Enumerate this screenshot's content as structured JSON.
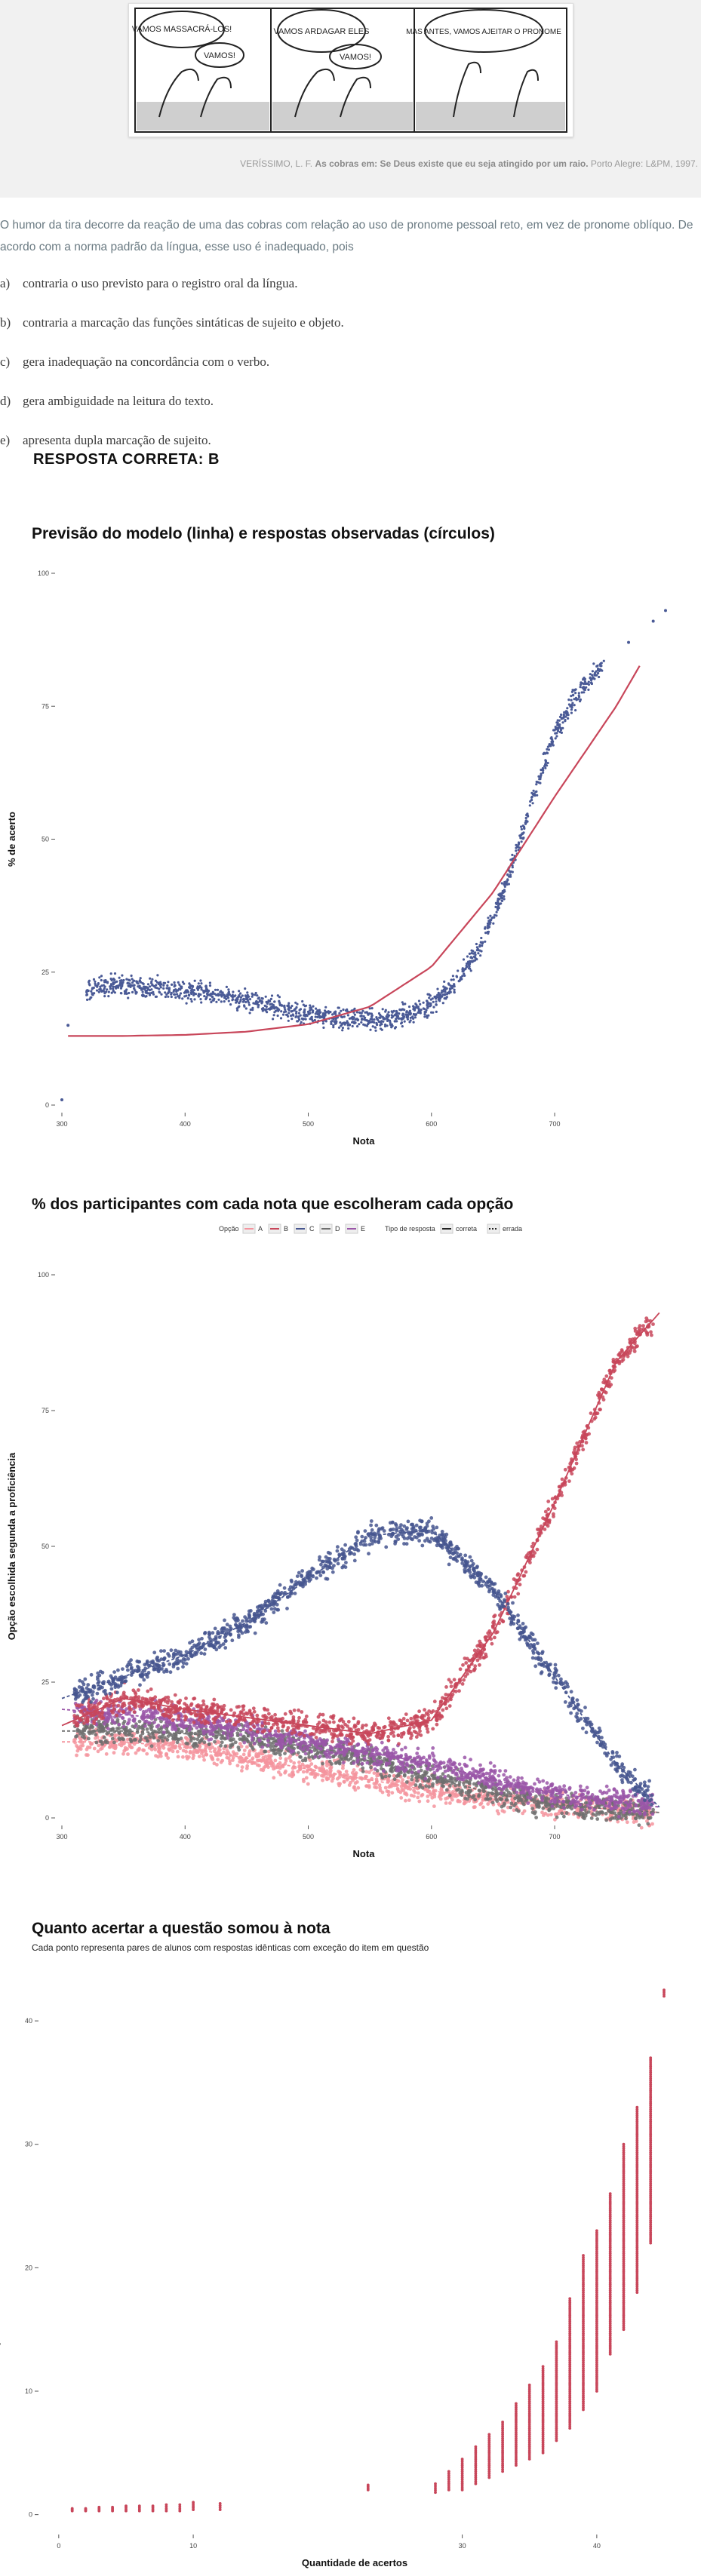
{
  "citation": {
    "author": "VERÍSSIMO, L. F.",
    "title": "As cobras em: Se Deus existe que eu seja atingido por um raio.",
    "publisher": "Porto Alegre: L&PM, 1997."
  },
  "comic": {
    "panels": [
      {
        "balloons": [
          "VAMOS MASSACRÁ-LOS!",
          "VAMOS!"
        ]
      },
      {
        "balloons": [
          "VAMOS ARDAGAR ELES",
          "VAMOS!"
        ]
      },
      {
        "balloons": [
          "MAS ANTES, VAMOS AJEITAR O PRONOME"
        ]
      }
    ]
  },
  "question": {
    "stem": "O humor da tira decorre da reação de uma das cobras com relação ao uso de pronome pessoal reto, em vez de pronome oblíquo. De acordo com a norma padrão da língua, esse uso é inadequado, pois",
    "alternatives": [
      {
        "letter": "a)",
        "text": "contraria o uso previsto para o registro oral da língua."
      },
      {
        "letter": "b)",
        "text": "contraria a marcação das funções sintáticas de sujeito e objeto."
      },
      {
        "letter": "c)",
        "text": "gera inadequação na concordância com o verbo."
      },
      {
        "letter": "d)",
        "text": "gera ambiguidade na leitura do texto."
      },
      {
        "letter": "e)",
        "text": "apresenta dupla marcação de sujeito."
      }
    ],
    "answer": "RESPOSTA CORRETA: B"
  },
  "chart_data": [
    {
      "type": "scatter",
      "title": "Previsão do modelo (linha) e respostas observadas (círculos)",
      "xlabel": "Nota",
      "ylabel": "% de acerto",
      "xlim": [
        300,
        790
      ],
      "ylim": [
        0,
        100
      ],
      "xticks": [
        300,
        400,
        500,
        600,
        700
      ],
      "yticks": [
        0,
        25,
        50,
        75,
        100
      ],
      "colors": {
        "points": "#4a5a96",
        "line": "#c8465a"
      },
      "observed": {
        "x": [
          300,
          305,
          320,
          340,
          360,
          380,
          400,
          420,
          440,
          460,
          480,
          500,
          520,
          540,
          560,
          580,
          600,
          620,
          640,
          660,
          680,
          700,
          720,
          740,
          760,
          780,
          790
        ],
        "y": [
          1,
          15,
          21.5,
          22.5,
          22.5,
          22,
          21.5,
          21,
          20,
          19,
          18,
          17,
          16.5,
          16,
          16,
          17,
          19,
          23,
          30,
          41,
          56,
          70,
          78,
          83,
          87,
          91,
          93
        ]
      },
      "model": {
        "x": [
          305,
          350,
          400,
          450,
          500,
          550,
          600,
          650,
          700,
          750,
          770
        ],
        "y": [
          13,
          13,
          13.2,
          13.8,
          15.2,
          18.5,
          26,
          40,
          58,
          75,
          83
        ]
      }
    },
    {
      "type": "scatter",
      "title": "% dos participantes com cada nota que escolheram cada opção",
      "xlabel": "Nota",
      "ylabel": "Opção escolhida segunda a proficiência",
      "xlim": [
        300,
        790
      ],
      "ylim": [
        0,
        100
      ],
      "xticks": [
        300,
        400,
        500,
        600,
        700
      ],
      "yticks": [
        0,
        25,
        50,
        75,
        100
      ],
      "legend": {
        "option_title": "Opção",
        "options": [
          "A",
          "B",
          "C",
          "D",
          "E"
        ],
        "type_title": "Tipo de resposta",
        "types": [
          "correta",
          "errada"
        ]
      },
      "series": [
        {
          "name": "A",
          "color": "#f4949e",
          "x": [
            300,
            350,
            400,
            450,
            500,
            550,
            600,
            650,
            700,
            750,
            785
          ],
          "y": [
            14,
            14,
            13,
            11,
            9,
            7,
            5,
            3.5,
            2.5,
            1.5,
            1
          ]
        },
        {
          "name": "B",
          "color": "#c8465a",
          "x": [
            300,
            350,
            400,
            450,
            500,
            550,
            600,
            650,
            700,
            750,
            785
          ],
          "y": [
            17,
            22,
            20,
            18.5,
            17,
            15.5,
            18,
            34,
            58,
            84,
            93
          ]
        },
        {
          "name": "C",
          "color": "#47568f",
          "x": [
            300,
            350,
            400,
            450,
            500,
            550,
            600,
            650,
            700,
            750,
            785
          ],
          "y": [
            22,
            26,
            30,
            36,
            44,
            52,
            53,
            42,
            26,
            10,
            2
          ]
        },
        {
          "name": "D",
          "color": "#6f6f6f",
          "x": [
            300,
            350,
            400,
            450,
            500,
            550,
            600,
            650,
            700,
            750,
            785
          ],
          "y": [
            16,
            16,
            15.5,
            15,
            13,
            10.5,
            7.5,
            4.5,
            2.5,
            1.5,
            1
          ]
        },
        {
          "name": "E",
          "color": "#9a56a8",
          "x": [
            300,
            350,
            400,
            450,
            500,
            550,
            600,
            650,
            700,
            750,
            785
          ],
          "y": [
            20,
            19,
            18,
            16,
            14,
            12,
            10,
            7,
            4.5,
            3,
            2
          ]
        }
      ]
    },
    {
      "type": "scatter",
      "title": "Quanto acertar a questão somou à nota",
      "subtitle": "Cada ponto representa pares de alunos com respostas idênticas com exceção do item em questão",
      "xlabel": "Quantidade de acertos",
      "ylabel": "Quanto acertar o item aumentou a anota",
      "xlim": [
        -1,
        45
      ],
      "ylim": [
        -1,
        43
      ],
      "xticks": [
        0,
        10,
        30,
        40
      ],
      "yticks": [
        0,
        10,
        20,
        30,
        40
      ],
      "color": "#c8465a",
      "columns": [
        {
          "x": 1,
          "min": 0.3,
          "max": 0.5
        },
        {
          "x": 2,
          "min": 0.3,
          "max": 0.5
        },
        {
          "x": 3,
          "min": 0.3,
          "max": 0.6
        },
        {
          "x": 4,
          "min": 0.3,
          "max": 0.6
        },
        {
          "x": 5,
          "min": 0.3,
          "max": 0.7
        },
        {
          "x": 6,
          "min": 0.3,
          "max": 0.7
        },
        {
          "x": 7,
          "min": 0.3,
          "max": 0.7
        },
        {
          "x": 8,
          "min": 0.3,
          "max": 0.8
        },
        {
          "x": 9,
          "min": 0.3,
          "max": 0.8
        },
        {
          "x": 10,
          "min": 0.4,
          "max": 1.0
        },
        {
          "x": 12,
          "min": 0.4,
          "max": 0.9
        },
        {
          "x": 23,
          "min": 2.0,
          "max": 2.4
        },
        {
          "x": 28,
          "min": 1.8,
          "max": 2.5
        },
        {
          "x": 29,
          "min": 2.0,
          "max": 3.5
        },
        {
          "x": 30,
          "min": 2.0,
          "max": 4.5
        },
        {
          "x": 31,
          "min": 2.5,
          "max": 5.5
        },
        {
          "x": 32,
          "min": 3.0,
          "max": 6.5
        },
        {
          "x": 33,
          "min": 3.5,
          "max": 7.5
        },
        {
          "x": 34,
          "min": 4.0,
          "max": 9.0
        },
        {
          "x": 35,
          "min": 4.5,
          "max": 10.5
        },
        {
          "x": 36,
          "min": 5.0,
          "max": 12.0
        },
        {
          "x": 37,
          "min": 6.0,
          "max": 14.0
        },
        {
          "x": 38,
          "min": 7.0,
          "max": 17.5
        },
        {
          "x": 39,
          "min": 8.5,
          "max": 21.0
        },
        {
          "x": 40,
          "min": 10.0,
          "max": 23.0
        },
        {
          "x": 41,
          "min": 13.0,
          "max": 26.0
        },
        {
          "x": 42,
          "min": 15.0,
          "max": 30.0
        },
        {
          "x": 43,
          "min": 18.0,
          "max": 33.0
        },
        {
          "x": 44,
          "min": 22.0,
          "max": 37.0
        },
        {
          "x": 45,
          "min": 42.0,
          "max": 42.5
        }
      ]
    }
  ]
}
